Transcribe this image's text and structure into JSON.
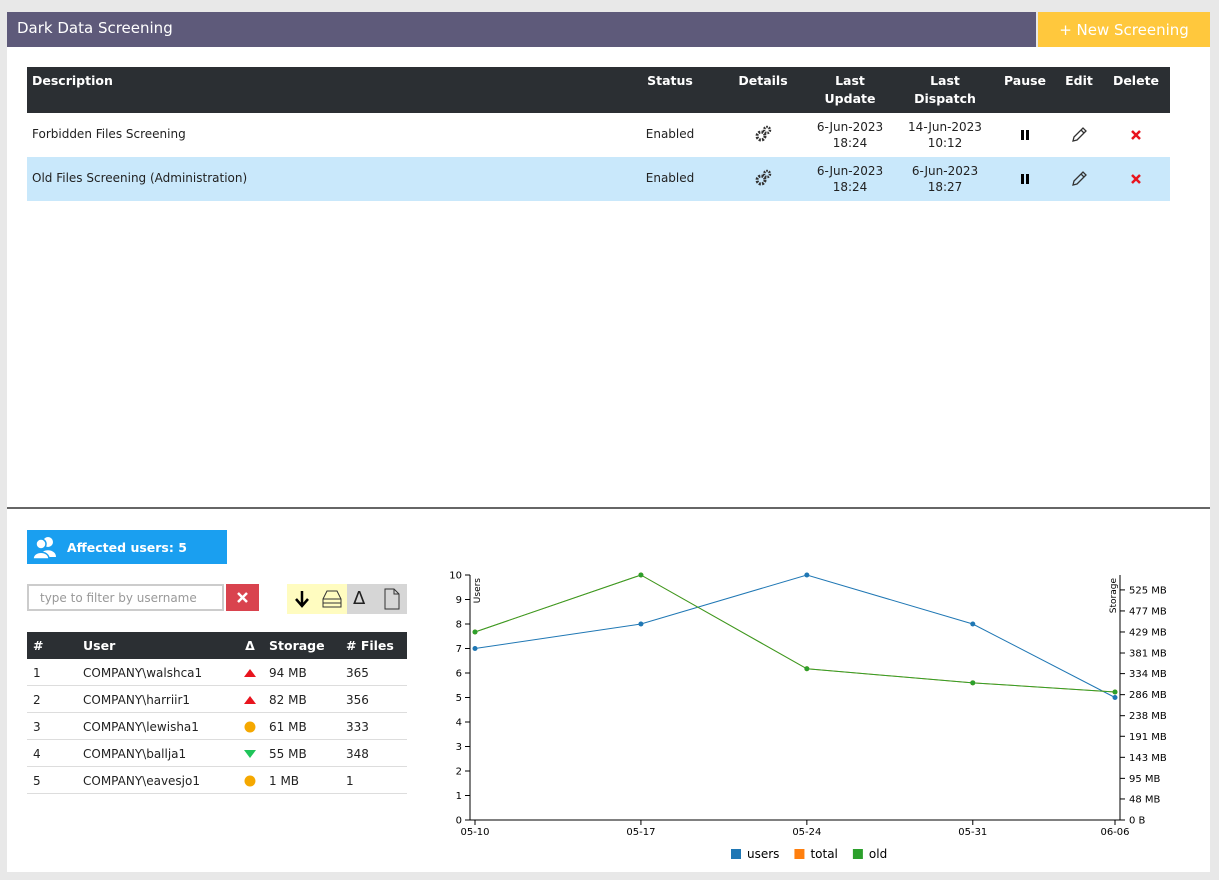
{
  "header": {
    "title": "Dark Data Screening",
    "button": "+ New Screening"
  },
  "screenings": {
    "columns": [
      "Description",
      "Status",
      "Details",
      "Last Update",
      "Last Dispatch",
      "Pause",
      "Edit",
      "Delete"
    ],
    "rows": [
      {
        "description": "Forbidden Files Screening",
        "status": "Enabled",
        "last_update": [
          "6-Jun-2023",
          "18:24"
        ],
        "last_dispatch": [
          "14-Jun-2023",
          "10:12"
        ],
        "selected": false
      },
      {
        "description": "Old Files Screening (Administration)",
        "status": "Enabled",
        "last_update": [
          "6-Jun-2023",
          "18:24"
        ],
        "last_dispatch": [
          "6-Jun-2023",
          "18:27"
        ],
        "selected": true
      }
    ]
  },
  "affected": {
    "label": "Affected users: 5"
  },
  "filter": {
    "placeholder": "type to filter by username"
  },
  "toolbar": {
    "delta": "Δ"
  },
  "users": {
    "columns": [
      "#",
      "User",
      "Δ",
      "Storage",
      "# Files"
    ],
    "rows": [
      {
        "rank": 1,
        "user": "COMPANY\\walshca1",
        "trend": "up",
        "storage": "94 MB",
        "files": 365
      },
      {
        "rank": 2,
        "user": "COMPANY\\harriir1",
        "trend": "up",
        "storage": "82 MB",
        "files": 356
      },
      {
        "rank": 3,
        "user": "COMPANY\\lewisha1",
        "trend": "flat",
        "storage": "61 MB",
        "files": 333
      },
      {
        "rank": 4,
        "user": "COMPANY\\ballja1",
        "trend": "down",
        "storage": "55 MB",
        "files": 348
      },
      {
        "rank": 5,
        "user": "COMPANY\\eavesjo1",
        "trend": "flat",
        "storage": "1 MB",
        "files": 1
      }
    ]
  },
  "chart_data": {
    "type": "line",
    "x": [
      "05-10",
      "05-17",
      "05-24",
      "05-31",
      "06-06"
    ],
    "ylabel": "Users",
    "y2label": "Storage",
    "ylim": [
      0,
      10
    ],
    "yticks": [
      0,
      1,
      2,
      3,
      4,
      5,
      6,
      7,
      8,
      9,
      10
    ],
    "y2lim": [
      0,
      559
    ],
    "y2ticks": [
      {
        "value": 0,
        "label": "0 B"
      },
      {
        "value": 48,
        "label": "48 MB"
      },
      {
        "value": 95,
        "label": "95 MB"
      },
      {
        "value": 143,
        "label": "143 MB"
      },
      {
        "value": 191,
        "label": "191 MB"
      },
      {
        "value": 238,
        "label": "238 MB"
      },
      {
        "value": 286,
        "label": "286 MB"
      },
      {
        "value": 334,
        "label": "334 MB"
      },
      {
        "value": 381,
        "label": "381 MB"
      },
      {
        "value": 429,
        "label": "429 MB"
      },
      {
        "value": 477,
        "label": "477 MB"
      },
      {
        "value": 525,
        "label": "525 MB"
      }
    ],
    "legend": "bottom",
    "series": [
      {
        "name": "users",
        "color": "#1f77b4",
        "values": [
          7,
          8,
          10,
          8,
          5
        ]
      },
      {
        "name": "total",
        "color": "#ff7f0e",
        "axis": "y2",
        "values": [
          429,
          559,
          345,
          313,
          292
        ]
      },
      {
        "name": "old",
        "color": "#2ca02c",
        "axis": "y2",
        "values": [
          429,
          559,
          345,
          313,
          292
        ]
      }
    ]
  }
}
